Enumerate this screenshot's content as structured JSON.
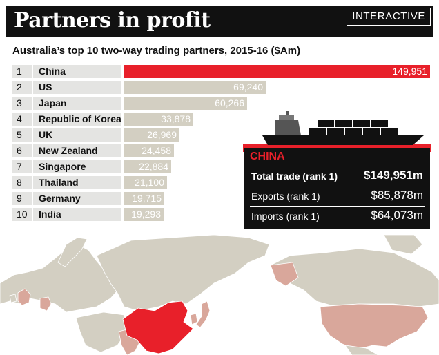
{
  "header": {
    "title": "Partners in profit",
    "badge": "INTERACTIVE"
  },
  "subtitle": "Australia’s top 10 two-way trading partners, 2015-16 ($Am)",
  "chart_data": {
    "type": "bar",
    "orientation": "horizontal",
    "title": "Partners in profit",
    "subtitle": "Australia’s top 10 two-way trading partners, 2015-16 ($Am)",
    "unit": "$Am",
    "highlight": "China",
    "highlight_color": "#e8202a",
    "bar_color": "#d3cfc2",
    "xlim": [
      0,
      149951
    ],
    "rows": [
      {
        "rank": "1",
        "country": "China",
        "value": 149951,
        "label": "149,951"
      },
      {
        "rank": "2",
        "country": "US",
        "value": 69240,
        "label": "69,240"
      },
      {
        "rank": "3",
        "country": "Japan",
        "value": 60266,
        "label": "60,266"
      },
      {
        "rank": "4",
        "country": "Republic of Korea",
        "value": 33878,
        "label": "33,878"
      },
      {
        "rank": "5",
        "country": "UK",
        "value": 26969,
        "label": "26,969"
      },
      {
        "rank": "6",
        "country": "New Zealand",
        "value": 24458,
        "label": "24,458"
      },
      {
        "rank": "7",
        "country": "Singapore",
        "value": 22884,
        "label": "22,884"
      },
      {
        "rank": "8",
        "country": "Thailand",
        "value": 21100,
        "label": "21,100"
      },
      {
        "rank": "9",
        "country": "Germany",
        "value": 19715,
        "label": "19,715"
      },
      {
        "rank": "10",
        "country": "India",
        "value": 19293,
        "label": "19,293"
      }
    ]
  },
  "info_panel": {
    "country": "CHINA",
    "rows": [
      {
        "label": "Total trade (rank 1)",
        "value": "$149,951m",
        "bold": true
      },
      {
        "label": "Exports (rank 1)",
        "value": "$85,878m",
        "bold": false
      },
      {
        "label": "Imports (rank 1)",
        "value": "$64,073m",
        "bold": false
      }
    ]
  },
  "map": {
    "land_color": "#d3cfc2",
    "partner_color": "#d9a79b",
    "highlight_color": "#e8202a",
    "highlighted_country": "China"
  }
}
